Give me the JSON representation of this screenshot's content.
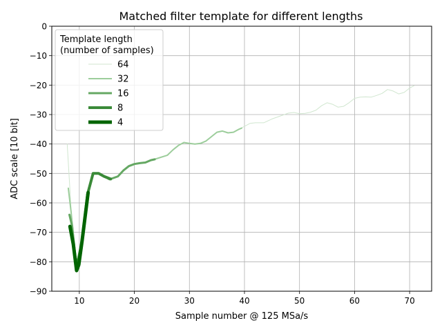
{
  "chart_data": {
    "type": "line",
    "title": "Matched filter template for different lengths",
    "xlabel": "Sample number @ 125 MSa/s",
    "ylabel": "ADC scale [10 bit]",
    "xlim": [
      5,
      74
    ],
    "ylim": [
      -90,
      0
    ],
    "xticks": [
      10,
      20,
      30,
      40,
      50,
      60,
      70
    ],
    "yticks": [
      0,
      -10,
      -20,
      -30,
      -40,
      -50,
      -60,
      -70,
      -80,
      -90
    ],
    "xtick_labels": [
      "10",
      "20",
      "30",
      "40",
      "50",
      "60",
      "70"
    ],
    "ytick_labels": [
      "0",
      "−10",
      "−20",
      "−30",
      "−40",
      "−50",
      "−60",
      "−70",
      "−80",
      "−90"
    ],
    "grid": true,
    "legend": {
      "title_line1": "Template length",
      "title_line2": "(number of samples)",
      "placement": "upper-left"
    },
    "series": [
      {
        "name": "64",
        "color": "#d0e6cf",
        "width": 1,
        "points": [
          [
            7.8,
            -40
          ],
          [
            8.5,
            -62
          ],
          [
            9.5,
            -82
          ],
          [
            10.5,
            -73
          ],
          [
            11.5,
            -57
          ],
          [
            12.5,
            -50
          ],
          [
            13.5,
            -50
          ],
          [
            14.5,
            -51
          ],
          [
            15.5,
            -52
          ],
          [
            17,
            -51
          ],
          [
            18,
            -49
          ],
          [
            19,
            -47.5
          ],
          [
            20,
            -46.8
          ],
          [
            21,
            -46.5
          ],
          [
            22,
            -46.3
          ],
          [
            23,
            -45.5
          ],
          [
            24,
            -45
          ],
          [
            26,
            -43.8
          ],
          [
            27,
            -42
          ],
          [
            28,
            -40.5
          ],
          [
            29,
            -39.5
          ],
          [
            30,
            -39.8
          ],
          [
            31,
            -40
          ],
          [
            32,
            -39.8
          ],
          [
            33,
            -39
          ],
          [
            34,
            -37.5
          ],
          [
            35,
            -36
          ],
          [
            36,
            -35.6
          ],
          [
            37,
            -36.2
          ],
          [
            38,
            -36
          ],
          [
            39,
            -35
          ],
          [
            40,
            -34
          ],
          [
            41,
            -33
          ],
          [
            42,
            -32.8
          ],
          [
            43.5,
            -32.8
          ],
          [
            45,
            -31.5
          ],
          [
            46.5,
            -30.5
          ],
          [
            48,
            -29.5
          ],
          [
            49,
            -29.3
          ],
          [
            50,
            -29.7
          ],
          [
            51,
            -29.6
          ],
          [
            52,
            -29.2
          ],
          [
            53,
            -28.5
          ],
          [
            54,
            -27
          ],
          [
            55,
            -26
          ],
          [
            56,
            -26.5
          ],
          [
            57,
            -27.5
          ],
          [
            58,
            -27.2
          ],
          [
            59,
            -26
          ],
          [
            60,
            -24.5
          ],
          [
            61,
            -24.1
          ],
          [
            62,
            -24
          ],
          [
            63,
            -24.1
          ],
          [
            64,
            -23.5
          ],
          [
            65,
            -22.8
          ],
          [
            66,
            -21.5
          ],
          [
            67,
            -22
          ],
          [
            68,
            -23
          ],
          [
            69,
            -22.5
          ],
          [
            70,
            -21
          ],
          [
            70.8,
            -20.2
          ]
        ]
      },
      {
        "name": "32",
        "color": "#9ccd9b",
        "width": 2,
        "points": [
          [
            8,
            -55
          ],
          [
            8.5,
            -63
          ],
          [
            9.5,
            -82
          ],
          [
            10.5,
            -73
          ],
          [
            11.5,
            -57
          ],
          [
            12.5,
            -50
          ],
          [
            13.5,
            -50
          ],
          [
            14.5,
            -51
          ],
          [
            15.5,
            -52
          ],
          [
            17,
            -51
          ],
          [
            18,
            -49
          ],
          [
            19,
            -47.5
          ],
          [
            20,
            -46.8
          ],
          [
            21,
            -46.5
          ],
          [
            22,
            -46.3
          ],
          [
            23,
            -45.5
          ],
          [
            24,
            -45
          ],
          [
            26,
            -43.8
          ],
          [
            27,
            -42
          ],
          [
            28,
            -40.5
          ],
          [
            29,
            -39.5
          ],
          [
            30,
            -39.8
          ],
          [
            31,
            -40
          ],
          [
            32,
            -39.8
          ],
          [
            33,
            -39
          ],
          [
            34,
            -37.5
          ],
          [
            35,
            -36
          ],
          [
            36,
            -35.6
          ],
          [
            37,
            -36.2
          ],
          [
            38,
            -36
          ],
          [
            39,
            -35
          ],
          [
            39.5,
            -34.6
          ]
        ]
      },
      {
        "name": "16",
        "color": "#65a863",
        "width": 3,
        "points": [
          [
            8.2,
            -64
          ],
          [
            8.7,
            -68
          ],
          [
            9.5,
            -82
          ],
          [
            10.5,
            -73
          ],
          [
            11.5,
            -57
          ],
          [
            12.5,
            -50
          ],
          [
            13.5,
            -50
          ],
          [
            14.5,
            -51
          ],
          [
            15.5,
            -52
          ],
          [
            17,
            -51
          ],
          [
            18,
            -49
          ],
          [
            19,
            -47.5
          ],
          [
            20,
            -46.8
          ],
          [
            21,
            -46.5
          ],
          [
            22,
            -46.3
          ],
          [
            23,
            -45.5
          ],
          [
            23.7,
            -45.2
          ]
        ]
      },
      {
        "name": "8",
        "color": "#3a8a38",
        "width": 4,
        "points": [
          [
            8.3,
            -68
          ],
          [
            8.7,
            -71
          ],
          [
            9.5,
            -82
          ],
          [
            10.5,
            -73
          ],
          [
            11.5,
            -57
          ],
          [
            12.5,
            -50
          ],
          [
            13.5,
            -50
          ],
          [
            14.5,
            -51
          ],
          [
            15.7,
            -51.9
          ]
        ]
      },
      {
        "name": "4",
        "color": "#006400",
        "width": 5,
        "points": [
          [
            8.3,
            -68
          ],
          [
            8.9,
            -74
          ],
          [
            9.5,
            -83
          ],
          [
            9.9,
            -81
          ],
          [
            10.5,
            -73
          ],
          [
            11.6,
            -56.5
          ]
        ]
      }
    ]
  }
}
